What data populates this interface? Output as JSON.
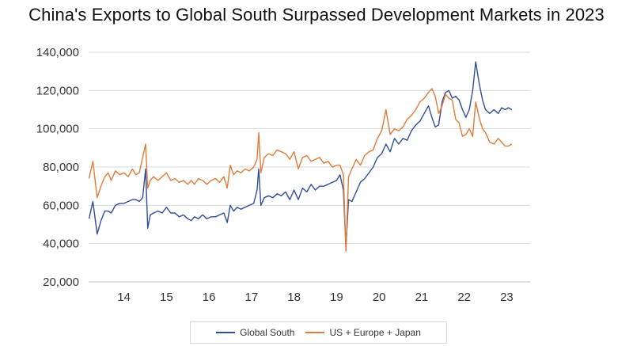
{
  "chart_data": {
    "type": "line",
    "title": "China's Exports to Global South Surpassed Development Markets in 2023",
    "xlabel": "",
    "ylabel": "",
    "x_range": [
      2013.67,
      2024.05
    ],
    "ylim": [
      20000,
      140000
    ],
    "yticks": [
      20000,
      40000,
      60000,
      80000,
      100000,
      120000,
      140000
    ],
    "ytick_labels": [
      "20,000",
      "40,000",
      "60,000",
      "80,000",
      "100,000",
      "120,000",
      "140,000"
    ],
    "xticks": [
      2014,
      2015,
      2016,
      2017,
      2018,
      2019,
      2020,
      2021,
      2022,
      2023
    ],
    "xtick_labels": [
      "14",
      "15",
      "16",
      "17",
      "18",
      "19",
      "20",
      "21",
      "22",
      "23"
    ],
    "grid": "horizontal",
    "legend": "bottom",
    "series": [
      {
        "name": "Global South",
        "color": "#2f4d9a",
        "points": [
          [
            2013.68,
            53000
          ],
          [
            2013.77,
            62000
          ],
          [
            2013.87,
            45000
          ],
          [
            2013.96,
            52000
          ],
          [
            2014.05,
            57000
          ],
          [
            2014.13,
            57000
          ],
          [
            2014.2,
            56000
          ],
          [
            2014.3,
            60000
          ],
          [
            2014.4,
            61000
          ],
          [
            2014.5,
            61000
          ],
          [
            2014.6,
            62000
          ],
          [
            2014.7,
            63000
          ],
          [
            2014.78,
            63000
          ],
          [
            2014.86,
            62000
          ],
          [
            2014.94,
            64000
          ],
          [
            2015.01,
            79000
          ],
          [
            2015.06,
            48000
          ],
          [
            2015.12,
            55000
          ],
          [
            2015.2,
            56000
          ],
          [
            2015.3,
            57000
          ],
          [
            2015.4,
            56000
          ],
          [
            2015.5,
            59000
          ],
          [
            2015.6,
            56000
          ],
          [
            2015.7,
            56000
          ],
          [
            2015.8,
            54000
          ],
          [
            2015.9,
            55000
          ],
          [
            2016.0,
            53000
          ],
          [
            2016.08,
            52000
          ],
          [
            2016.16,
            54000
          ],
          [
            2016.25,
            53000
          ],
          [
            2016.35,
            55000
          ],
          [
            2016.45,
            53000
          ],
          [
            2016.55,
            54000
          ],
          [
            2016.65,
            54000
          ],
          [
            2016.75,
            55000
          ],
          [
            2016.85,
            56000
          ],
          [
            2016.93,
            51000
          ],
          [
            2017.0,
            60000
          ],
          [
            2017.08,
            57000
          ],
          [
            2017.16,
            59000
          ],
          [
            2017.25,
            58000
          ],
          [
            2017.35,
            59000
          ],
          [
            2017.45,
            60000
          ],
          [
            2017.55,
            61000
          ],
          [
            2017.63,
            68000
          ],
          [
            2017.67,
            79000
          ],
          [
            2017.72,
            60000
          ],
          [
            2017.8,
            64000
          ],
          [
            2017.9,
            65000
          ],
          [
            2018.0,
            64000
          ],
          [
            2018.1,
            66000
          ],
          [
            2018.2,
            65000
          ],
          [
            2018.3,
            67000
          ],
          [
            2018.4,
            63000
          ],
          [
            2018.5,
            68000
          ],
          [
            2018.6,
            63000
          ],
          [
            2018.7,
            69000
          ],
          [
            2018.8,
            67000
          ],
          [
            2018.9,
            71000
          ],
          [
            2019.0,
            68000
          ],
          [
            2019.1,
            70000
          ],
          [
            2019.2,
            70000
          ],
          [
            2019.3,
            71000
          ],
          [
            2019.4,
            72000
          ],
          [
            2019.5,
            73000
          ],
          [
            2019.58,
            76000
          ],
          [
            2019.66,
            68000
          ],
          [
            2019.72,
            38000
          ],
          [
            2019.78,
            63000
          ],
          [
            2019.86,
            62000
          ],
          [
            2019.96,
            67000
          ],
          [
            2020.06,
            72000
          ],
          [
            2020.16,
            74000
          ],
          [
            2020.26,
            77000
          ],
          [
            2020.36,
            80000
          ],
          [
            2020.46,
            85000
          ],
          [
            2020.56,
            87000
          ],
          [
            2020.66,
            92000
          ],
          [
            2020.76,
            88000
          ],
          [
            2020.86,
            95000
          ],
          [
            2020.96,
            92000
          ],
          [
            2021.06,
            95000
          ],
          [
            2021.16,
            94000
          ],
          [
            2021.26,
            99000
          ],
          [
            2021.36,
            102000
          ],
          [
            2021.46,
            104000
          ],
          [
            2021.56,
            108000
          ],
          [
            2021.66,
            112000
          ],
          [
            2021.74,
            106000
          ],
          [
            2021.82,
            101000
          ],
          [
            2021.9,
            102000
          ],
          [
            2021.98,
            114000
          ],
          [
            2022.06,
            119000
          ],
          [
            2022.14,
            120000
          ],
          [
            2022.22,
            116000
          ],
          [
            2022.3,
            117000
          ],
          [
            2022.38,
            115000
          ],
          [
            2022.46,
            110000
          ],
          [
            2022.54,
            106000
          ],
          [
            2022.62,
            110000
          ],
          [
            2022.7,
            120000
          ],
          [
            2022.77,
            135000
          ],
          [
            2022.85,
            124000
          ],
          [
            2022.93,
            115000
          ],
          [
            2023.0,
            110000
          ],
          [
            2023.1,
            108000
          ],
          [
            2023.2,
            110000
          ],
          [
            2023.3,
            108000
          ],
          [
            2023.38,
            111000
          ],
          [
            2023.46,
            110000
          ],
          [
            2023.54,
            111000
          ],
          [
            2023.62,
            110000
          ]
        ]
      },
      {
        "name": "US + Europe + Japan",
        "color": "#e07b39",
        "points": [
          [
            2013.68,
            74000
          ],
          [
            2013.77,
            83000
          ],
          [
            2013.87,
            64000
          ],
          [
            2013.96,
            70000
          ],
          [
            2014.05,
            75000
          ],
          [
            2014.13,
            77000
          ],
          [
            2014.2,
            73000
          ],
          [
            2014.3,
            78000
          ],
          [
            2014.4,
            76000
          ],
          [
            2014.5,
            77000
          ],
          [
            2014.6,
            75000
          ],
          [
            2014.7,
            79000
          ],
          [
            2014.78,
            76000
          ],
          [
            2014.86,
            77000
          ],
          [
            2014.94,
            85000
          ],
          [
            2015.01,
            92000
          ],
          [
            2015.06,
            69000
          ],
          [
            2015.12,
            73000
          ],
          [
            2015.2,
            75000
          ],
          [
            2015.3,
            73000
          ],
          [
            2015.4,
            75000
          ],
          [
            2015.5,
            77000
          ],
          [
            2015.6,
            73000
          ],
          [
            2015.7,
            74000
          ],
          [
            2015.8,
            72000
          ],
          [
            2015.9,
            73000
          ],
          [
            2016.0,
            71000
          ],
          [
            2016.08,
            73000
          ],
          [
            2016.16,
            71000
          ],
          [
            2016.25,
            74000
          ],
          [
            2016.35,
            73000
          ],
          [
            2016.45,
            71000
          ],
          [
            2016.55,
            73000
          ],
          [
            2016.65,
            74000
          ],
          [
            2016.75,
            72000
          ],
          [
            2016.85,
            75000
          ],
          [
            2016.93,
            69000
          ],
          [
            2017.0,
            81000
          ],
          [
            2017.08,
            76000
          ],
          [
            2017.16,
            78000
          ],
          [
            2017.25,
            77000
          ],
          [
            2017.35,
            79000
          ],
          [
            2017.45,
            78000
          ],
          [
            2017.55,
            80000
          ],
          [
            2017.63,
            84000
          ],
          [
            2017.67,
            98000
          ],
          [
            2017.72,
            77000
          ],
          [
            2017.8,
            85000
          ],
          [
            2017.9,
            87000
          ],
          [
            2018.0,
            86000
          ],
          [
            2018.1,
            89000
          ],
          [
            2018.2,
            88000
          ],
          [
            2018.3,
            87000
          ],
          [
            2018.4,
            84000
          ],
          [
            2018.5,
            88000
          ],
          [
            2018.6,
            79000
          ],
          [
            2018.7,
            85000
          ],
          [
            2018.8,
            86000
          ],
          [
            2018.9,
            83000
          ],
          [
            2019.0,
            84000
          ],
          [
            2019.1,
            85000
          ],
          [
            2019.2,
            82000
          ],
          [
            2019.3,
            83000
          ],
          [
            2019.4,
            80000
          ],
          [
            2019.5,
            81000
          ],
          [
            2019.58,
            81000
          ],
          [
            2019.66,
            76000
          ],
          [
            2019.72,
            36000
          ],
          [
            2019.78,
            75000
          ],
          [
            2019.86,
            79000
          ],
          [
            2019.96,
            84000
          ],
          [
            2020.06,
            81000
          ],
          [
            2020.16,
            86000
          ],
          [
            2020.26,
            88000
          ],
          [
            2020.36,
            89000
          ],
          [
            2020.46,
            95000
          ],
          [
            2020.56,
            99000
          ],
          [
            2020.66,
            110000
          ],
          [
            2020.76,
            97000
          ],
          [
            2020.86,
            100000
          ],
          [
            2020.96,
            99000
          ],
          [
            2021.06,
            101000
          ],
          [
            2021.16,
            105000
          ],
          [
            2021.26,
            107000
          ],
          [
            2021.36,
            110000
          ],
          [
            2021.46,
            114000
          ],
          [
            2021.56,
            116000
          ],
          [
            2021.66,
            119000
          ],
          [
            2021.74,
            121000
          ],
          [
            2021.82,
            117000
          ],
          [
            2021.9,
            108000
          ],
          [
            2021.98,
            112000
          ],
          [
            2022.06,
            118000
          ],
          [
            2022.14,
            116000
          ],
          [
            2022.22,
            115000
          ],
          [
            2022.3,
            105000
          ],
          [
            2022.38,
            103000
          ],
          [
            2022.46,
            96000
          ],
          [
            2022.54,
            97000
          ],
          [
            2022.62,
            100000
          ],
          [
            2022.7,
            96000
          ],
          [
            2022.77,
            114000
          ],
          [
            2022.85,
            106000
          ],
          [
            2022.93,
            100000
          ],
          [
            2023.0,
            98000
          ],
          [
            2023.1,
            93000
          ],
          [
            2023.2,
            92000
          ],
          [
            2023.3,
            95000
          ],
          [
            2023.38,
            93000
          ],
          [
            2023.46,
            91000
          ],
          [
            2023.54,
            91000
          ],
          [
            2023.62,
            92000
          ]
        ]
      }
    ]
  }
}
